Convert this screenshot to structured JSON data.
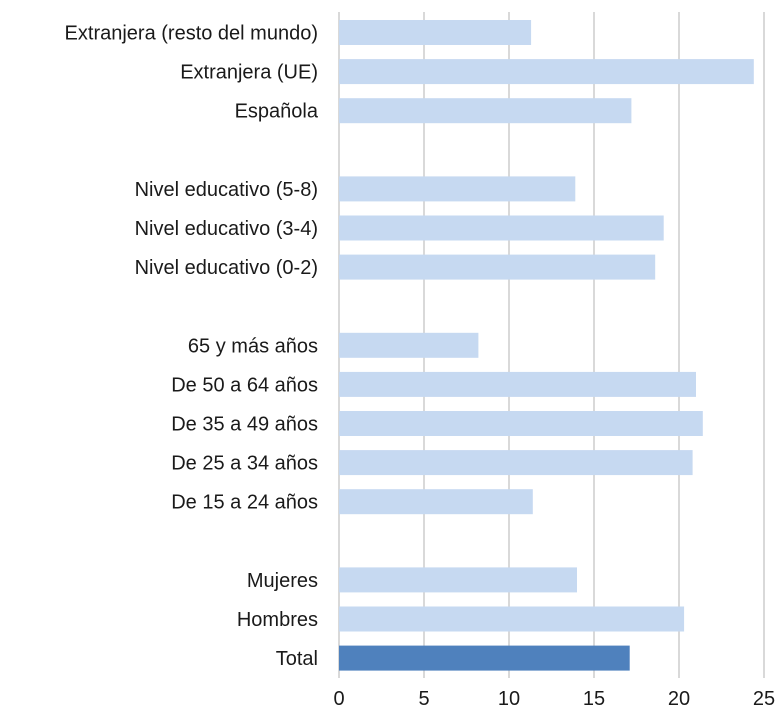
{
  "chart_data": {
    "type": "bar",
    "orientation": "horizontal",
    "title": "",
    "xlabel": "",
    "ylabel": "",
    "xlim": [
      0,
      25
    ],
    "xticks": [
      0,
      5,
      10,
      15,
      20,
      25
    ],
    "grid": "vertical",
    "legend": "none",
    "categories": [
      "Extranjera (resto del mundo)",
      "Extranjera (UE)",
      "Española",
      "",
      "Nivel educativo (5-8)",
      "Nivel educativo (3-4)",
      "Nivel educativo (0-2)",
      "",
      "65 y más años",
      "De 50 a 64 años",
      "De 35 a 49 años",
      "De 25 a 34 años",
      "De 15 a 24 años",
      "",
      "Mujeres",
      "Hombres",
      "Total"
    ],
    "values": [
      11.3,
      24.4,
      17.2,
      null,
      13.9,
      19.1,
      18.6,
      null,
      8.2,
      21.0,
      21.4,
      20.8,
      11.4,
      null,
      14.0,
      20.3,
      17.1
    ],
    "colors": {
      "bar": "#c6d9f1",
      "highlight": "#4f81bd",
      "highlight_category": "Total",
      "grid": "#d9d9d9"
    }
  }
}
